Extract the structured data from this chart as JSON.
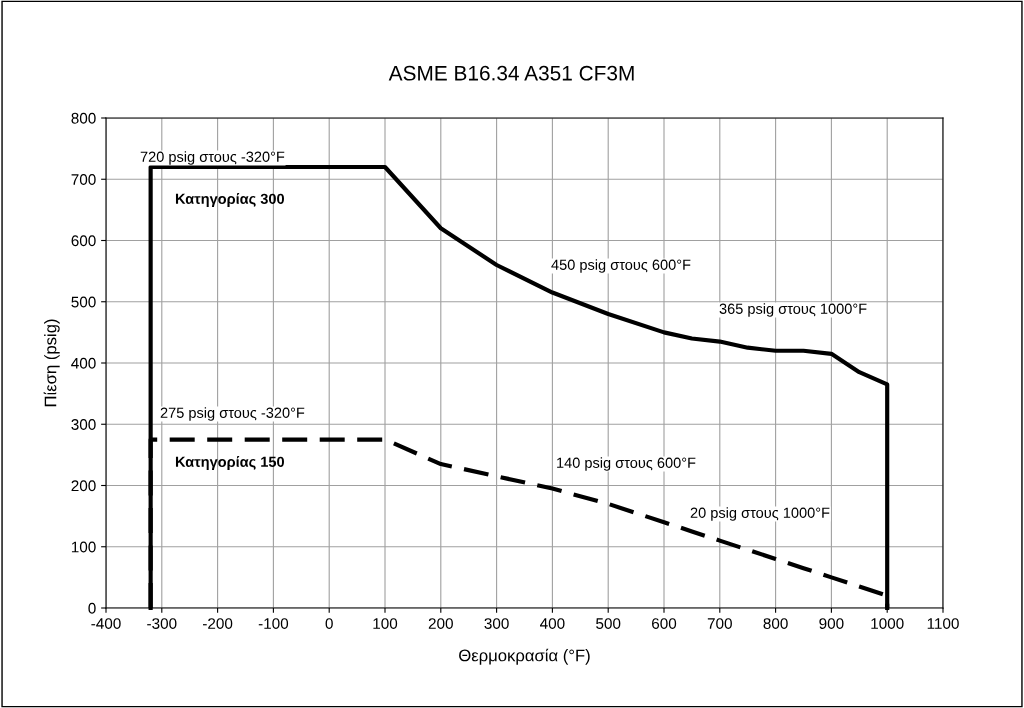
{
  "chart_data": {
    "type": "line",
    "title": "ASME B16.34 A351 CF3M",
    "xlabel": "Θερμοκρασία (°F)",
    "ylabel": "Πίεση (psig)",
    "xlim": [
      -400,
      1100
    ],
    "xticks": [
      -400,
      -300,
      -200,
      -100,
      0,
      100,
      200,
      300,
      400,
      500,
      600,
      700,
      800,
      900,
      1000,
      1100
    ],
    "ylim": [
      0,
      800
    ],
    "yticks": [
      0,
      100,
      200,
      300,
      400,
      500,
      600,
      700,
      800
    ],
    "grid": true,
    "legend": false,
    "marker": "none",
    "series": [
      {
        "name": "Κατηγορίας 300",
        "color": "#000000",
        "line_style": "solid",
        "x": [
          -320,
          -320,
          100,
          200,
          300,
          400,
          500,
          600,
          650,
          700,
          750,
          800,
          850,
          900,
          950,
          1000,
          1000
        ],
        "values": [
          0,
          720,
          720,
          620,
          560,
          515,
          480,
          450,
          440,
          435,
          425,
          420,
          420,
          415,
          385,
          365,
          0
        ]
      },
      {
        "name": "Κατηγορίας 150",
        "color": "#000000",
        "line_style": "dashed",
        "x": [
          -320,
          -320,
          100,
          200,
          300,
          400,
          500,
          600,
          650,
          700,
          750,
          800,
          850,
          900,
          950,
          1000,
          1000
        ],
        "values": [
          0,
          275,
          275,
          235,
          215,
          195,
          170,
          140,
          125,
          110,
          95,
          80,
          65,
          50,
          35,
          20,
          0
        ]
      }
    ],
    "annotations": [
      "720 psig στους -320°F",
      "450 psig στους 600°F",
      "365 psig στους 1000°F",
      "275 psig στους -320°F",
      "140 psig στους 600°F",
      "20 psig στους 1000°F"
    ]
  }
}
